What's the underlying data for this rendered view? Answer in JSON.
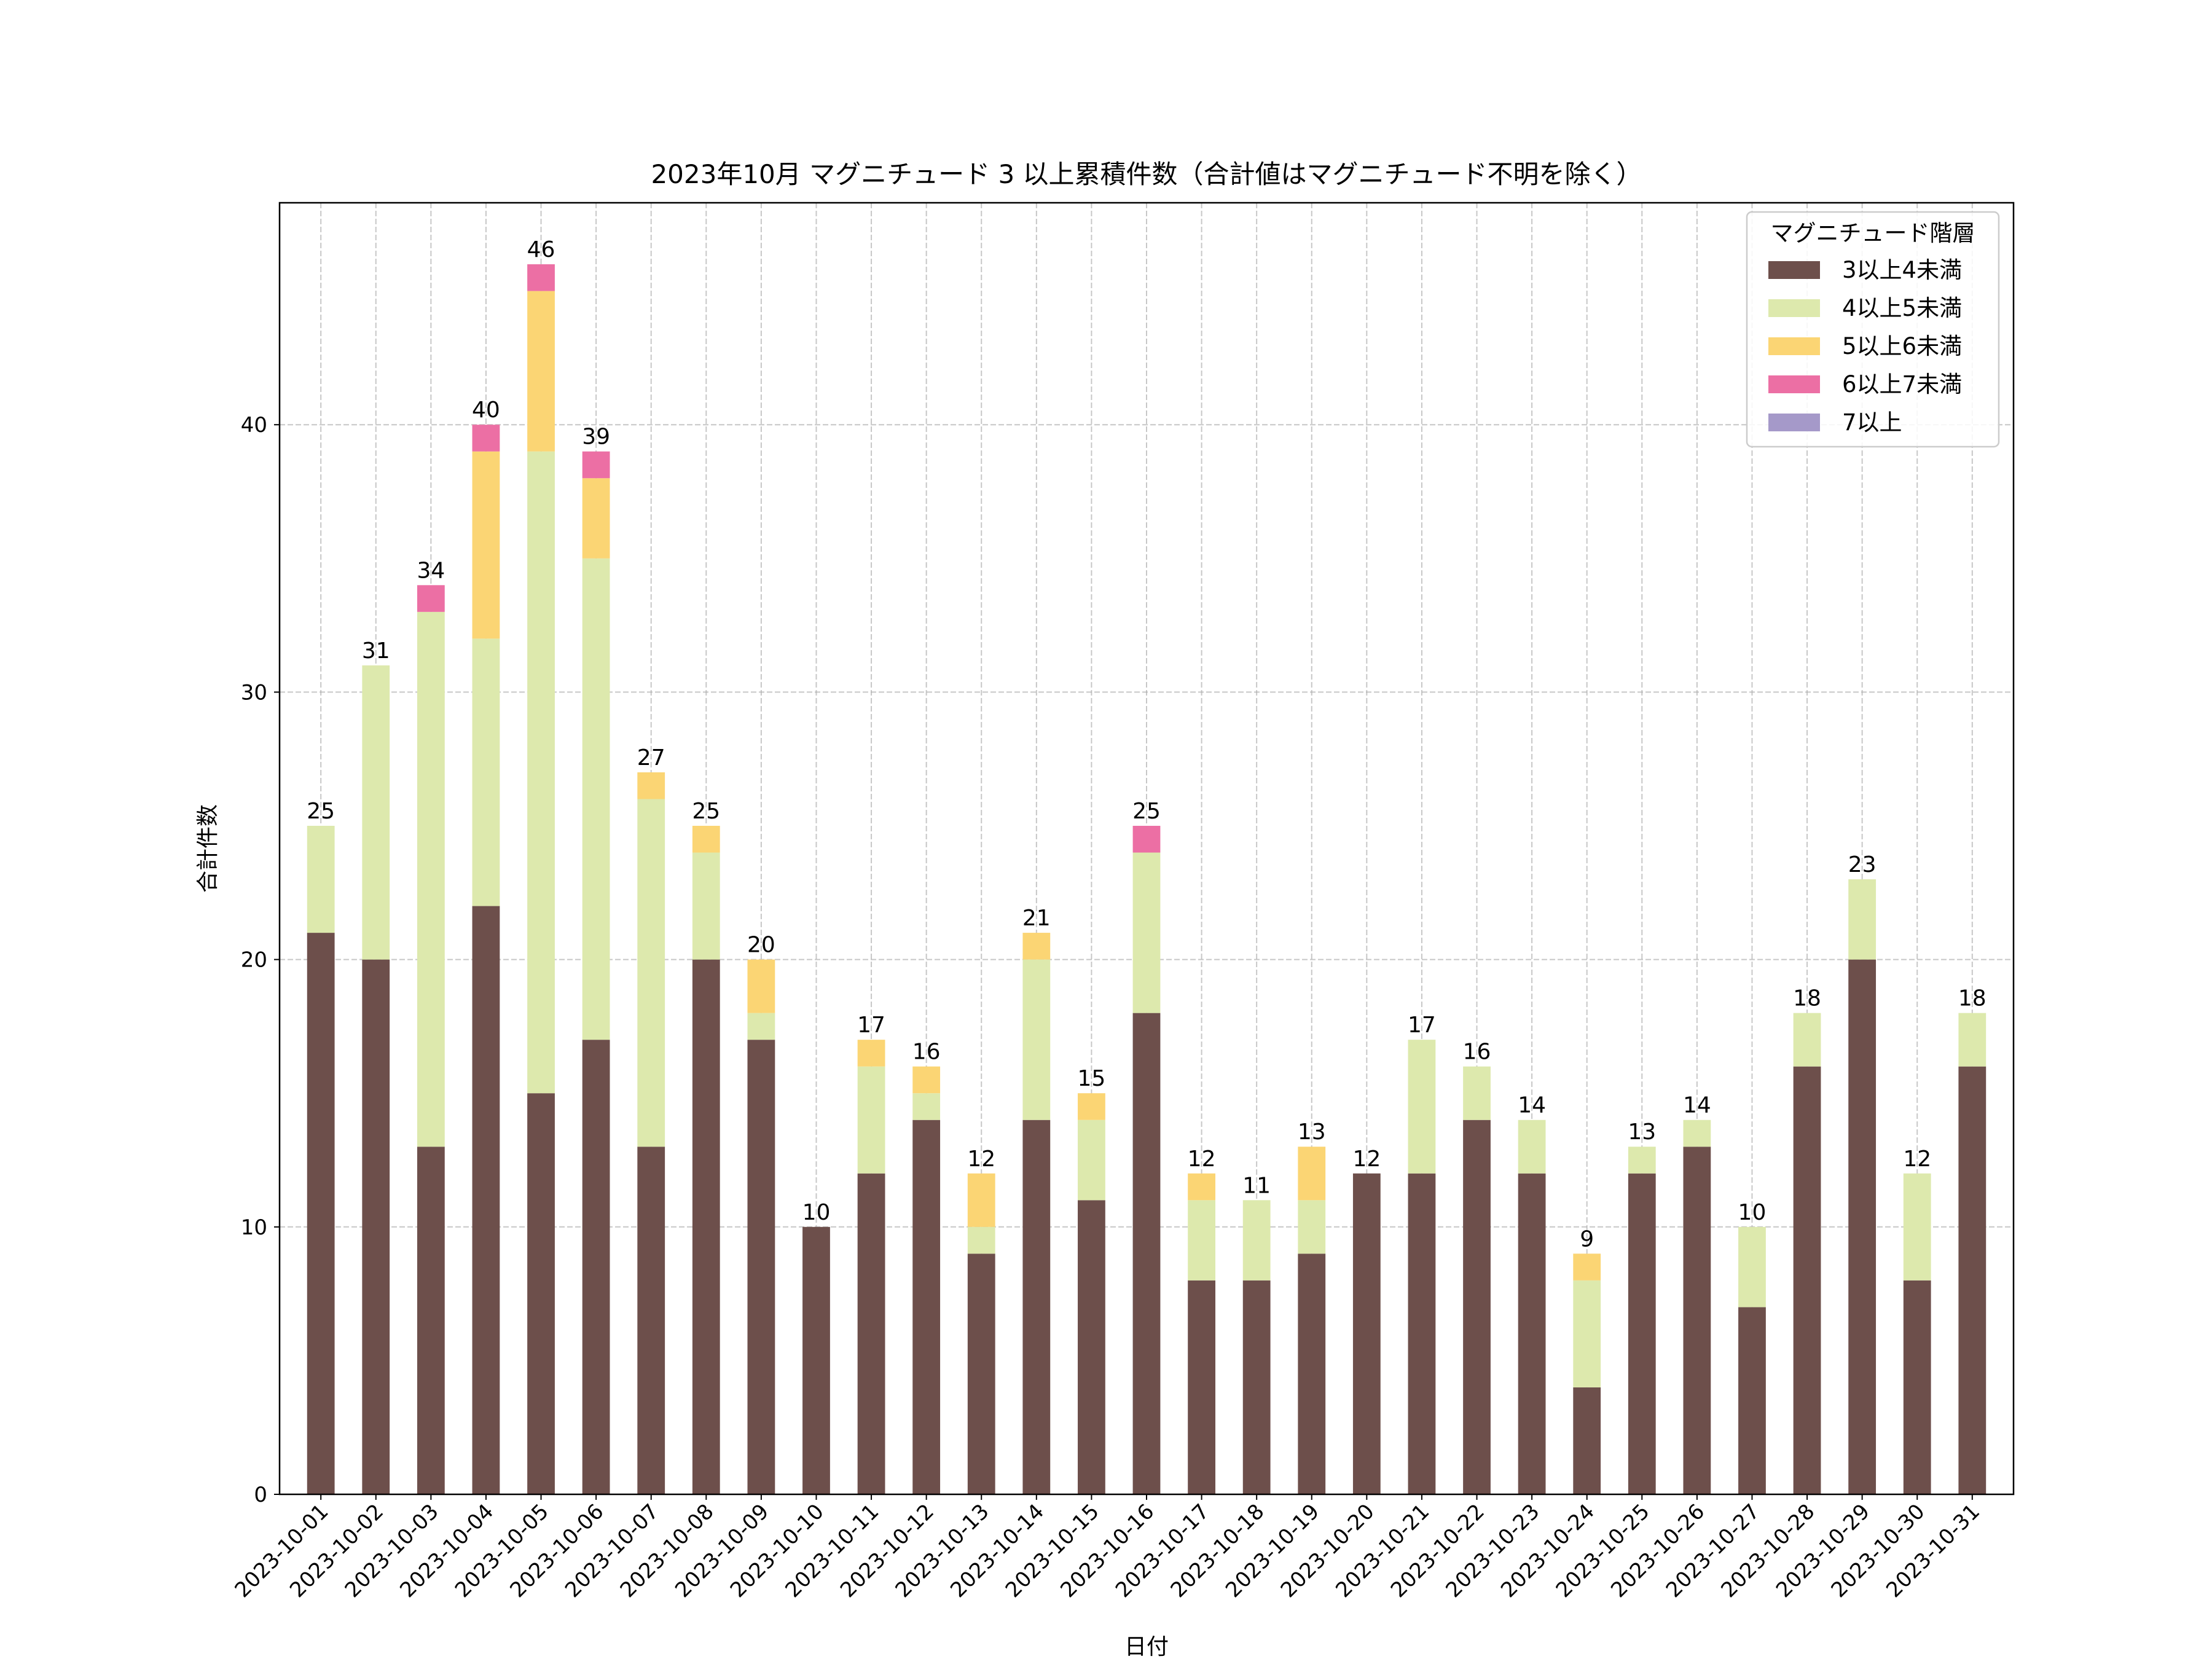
{
  "chart_data": {
    "type": "bar",
    "stacked": true,
    "title": "2023年10月 マグニチュード 3 以上累積件数（合計値はマグニチュード不明を除く）",
    "xlabel": "日付",
    "ylabel": "合計件数",
    "ylim": [
      0,
      48.3
    ],
    "yticks": [
      0,
      10,
      20,
      30,
      40
    ],
    "grid": true,
    "legend": {
      "title": "マグニチュード階層",
      "placement": "top-right"
    },
    "categories": [
      "2023-10-01",
      "2023-10-02",
      "2023-10-03",
      "2023-10-04",
      "2023-10-05",
      "2023-10-06",
      "2023-10-07",
      "2023-10-08",
      "2023-10-09",
      "2023-10-10",
      "2023-10-11",
      "2023-10-12",
      "2023-10-13",
      "2023-10-14",
      "2023-10-15",
      "2023-10-16",
      "2023-10-17",
      "2023-10-18",
      "2023-10-19",
      "2023-10-20",
      "2023-10-21",
      "2023-10-22",
      "2023-10-23",
      "2023-10-24",
      "2023-10-25",
      "2023-10-26",
      "2023-10-27",
      "2023-10-28",
      "2023-10-29",
      "2023-10-30",
      "2023-10-31"
    ],
    "series": [
      {
        "name": "3以上4未満",
        "color": "#6d4f4b",
        "values": [
          21,
          20,
          13,
          22,
          15,
          17,
          13,
          20,
          17,
          10,
          12,
          14,
          9,
          14,
          11,
          18,
          8,
          8,
          9,
          12,
          12,
          14,
          12,
          4,
          12,
          13,
          7,
          16,
          20,
          8,
          16
        ]
      },
      {
        "name": "4以上5未満",
        "color": "#dde9ad",
        "values": [
          4,
          11,
          20,
          10,
          24,
          18,
          13,
          4,
          1,
          0,
          4,
          1,
          1,
          6,
          3,
          6,
          3,
          3,
          2,
          0,
          5,
          2,
          2,
          4,
          1,
          1,
          3,
          2,
          3,
          4,
          2
        ]
      },
      {
        "name": "5以上6未満",
        "color": "#fbd574",
        "values": [
          0,
          0,
          0,
          7,
          6,
          3,
          1,
          1,
          2,
          0,
          1,
          1,
          2,
          1,
          1,
          0,
          1,
          0,
          2,
          0,
          0,
          0,
          0,
          1,
          0,
          0,
          0,
          0,
          0,
          0,
          0
        ]
      },
      {
        "name": "6以上7未満",
        "color": "#ec6fa4",
        "values": [
          0,
          0,
          1,
          1,
          1,
          1,
          0,
          0,
          0,
          0,
          0,
          0,
          0,
          0,
          0,
          1,
          0,
          0,
          0,
          0,
          0,
          0,
          0,
          0,
          0,
          0,
          0,
          0,
          0,
          0,
          0
        ]
      },
      {
        "name": "7以上",
        "color": "#a599c9",
        "values": [
          0,
          0,
          0,
          0,
          0,
          0,
          0,
          0,
          0,
          0,
          0,
          0,
          0,
          0,
          0,
          0,
          0,
          0,
          0,
          0,
          0,
          0,
          0,
          0,
          0,
          0,
          0,
          0,
          0,
          0,
          0
        ]
      }
    ],
    "totals": [
      25,
      31,
      34,
      40,
      46,
      39,
      27,
      25,
      20,
      10,
      17,
      16,
      12,
      21,
      15,
      25,
      12,
      11,
      13,
      12,
      17,
      16,
      14,
      9,
      13,
      14,
      10,
      18,
      23,
      12,
      18
    ]
  }
}
